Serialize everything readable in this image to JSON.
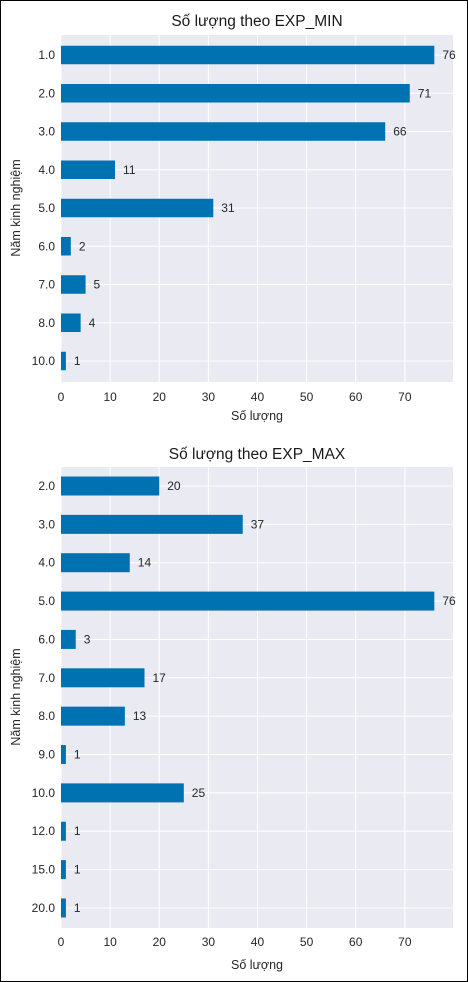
{
  "chart_data": [
    {
      "type": "bar",
      "orientation": "horizontal",
      "title": "Số lượng theo EXP_MIN",
      "xlabel": "Số lượng",
      "ylabel": "Năm kinh nghiệm",
      "categories": [
        "1.0",
        "2.0",
        "3.0",
        "4.0",
        "5.0",
        "6.0",
        "7.0",
        "8.0",
        "10.0"
      ],
      "values": [
        76,
        71,
        66,
        11,
        31,
        2,
        5,
        4,
        1
      ],
      "xlim": [
        0,
        79.8
      ],
      "xticks": [
        0,
        10,
        20,
        30,
        40,
        50,
        60,
        70
      ],
      "grid": true,
      "bar_color": "#0072b2",
      "background_color": "#eaeaf2"
    },
    {
      "type": "bar",
      "orientation": "horizontal",
      "title": "Số lượng theo EXP_MAX",
      "xlabel": "Số lượng",
      "ylabel": "Năm kinh nghiệm",
      "categories": [
        "2.0",
        "3.0",
        "4.0",
        "5.0",
        "6.0",
        "7.0",
        "8.0",
        "9.0",
        "10.0",
        "12.0",
        "15.0",
        "20.0"
      ],
      "values": [
        20,
        37,
        14,
        76,
        3,
        17,
        13,
        1,
        25,
        1,
        1,
        1
      ],
      "xlim": [
        0,
        79.8
      ],
      "xticks": [
        0,
        10,
        20,
        30,
        40,
        50,
        60,
        70
      ],
      "grid": true,
      "bar_color": "#0072b2",
      "background_color": "#eaeaf2"
    }
  ]
}
